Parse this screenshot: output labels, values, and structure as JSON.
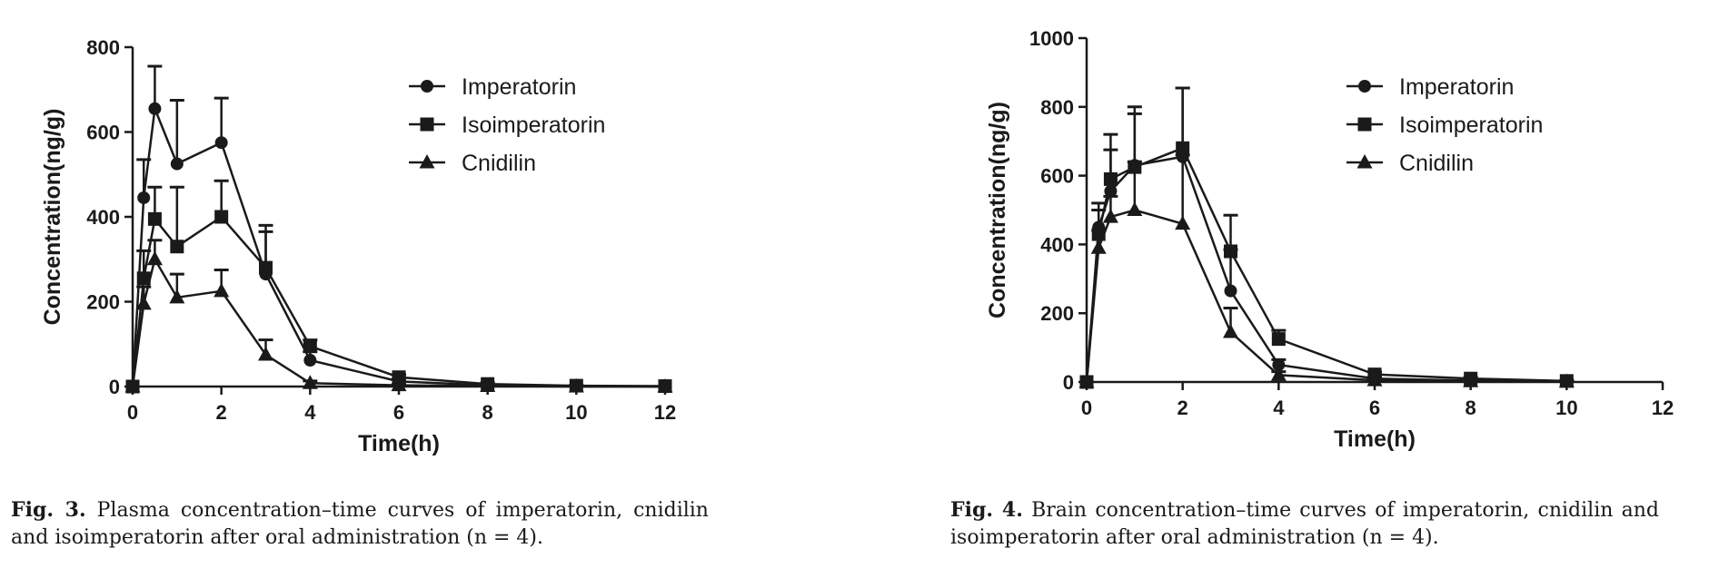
{
  "chart_data": [
    {
      "type": "line",
      "xlabel": "Time(h)",
      "ylabel": "Concentration(ng/g)",
      "xlim": [
        0,
        12
      ],
      "ylim": [
        0,
        800
      ],
      "xticks": [
        "0",
        "2",
        "4",
        "6",
        "8",
        "10",
        "12"
      ],
      "yticks": [
        "0",
        "200",
        "400",
        "600",
        "800"
      ],
      "grid": false,
      "legend_position": "top-right",
      "error_bars": true,
      "x": [
        0,
        0.25,
        0.5,
        1,
        2,
        3,
        4,
        6,
        8,
        10,
        12
      ],
      "series": [
        {
          "name": "Imperatorin",
          "marker": "circle",
          "values": [
            0,
            445,
            655,
            525,
            575,
            265,
            62,
            12,
            3,
            1,
            0
          ],
          "errors": [
            0,
            90,
            100,
            150,
            105,
            100,
            20,
            6,
            2,
            1,
            0
          ]
        },
        {
          "name": "Isoimperatorin",
          "marker": "square",
          "values": [
            0,
            255,
            395,
            330,
            400,
            280,
            95,
            22,
            6,
            2,
            1
          ],
          "errors": [
            0,
            65,
            75,
            140,
            85,
            100,
            15,
            6,
            3,
            1,
            0
          ]
        },
        {
          "name": "Cnidilin",
          "marker": "triangle",
          "values": [
            0,
            195,
            300,
            210,
            225,
            75,
            8,
            3,
            1,
            0,
            0
          ],
          "errors": [
            0,
            40,
            45,
            55,
            50,
            35,
            5,
            2,
            1,
            0,
            0
          ]
        }
      ]
    },
    {
      "type": "line",
      "xlabel": "Time(h)",
      "ylabel": "Concentration(ng/g)",
      "xlim": [
        0,
        12
      ],
      "ylim": [
        0,
        1000
      ],
      "xticks": [
        "0",
        "2",
        "4",
        "6",
        "8",
        "10",
        "12"
      ],
      "yticks": [
        "0",
        "200",
        "400",
        "600",
        "800",
        "1000"
      ],
      "grid": false,
      "legend_position": "top-right",
      "error_bars": true,
      "x": [
        0,
        0.25,
        0.5,
        1,
        2,
        3,
        4,
        6,
        8,
        10
      ],
      "series": [
        {
          "name": "Imperatorin",
          "marker": "circle",
          "values": [
            0,
            450,
            555,
            630,
            655,
            265,
            50,
            10,
            4,
            2
          ],
          "errors": [
            0,
            50,
            120,
            150,
            200,
            120,
            15,
            5,
            3,
            1
          ]
        },
        {
          "name": "Isoimperatorin",
          "marker": "square",
          "values": [
            0,
            430,
            590,
            625,
            680,
            380,
            125,
            22,
            10,
            3
          ],
          "errors": [
            0,
            90,
            130,
            175,
            175,
            105,
            25,
            7,
            4,
            2
          ]
        },
        {
          "name": "Cnidilin",
          "marker": "triangle",
          "values": [
            0,
            390,
            480,
            500,
            460,
            145,
            20,
            5,
            2,
            1
          ],
          "errors": [
            0,
            50,
            60,
            140,
            200,
            70,
            10,
            4,
            2,
            1
          ]
        }
      ]
    }
  ],
  "captions": {
    "left": {
      "label": "Fig. 3.",
      "text": "Plasma concentration–time curves of imperatorin, cnidilin and isoimperatorin after oral administration (n = 4)."
    },
    "right": {
      "label": "Fig. 4.",
      "text": "Brain concentration–time curves of imperatorin, cnidilin and isoimperatorin after oral administration (n = 4)."
    }
  }
}
